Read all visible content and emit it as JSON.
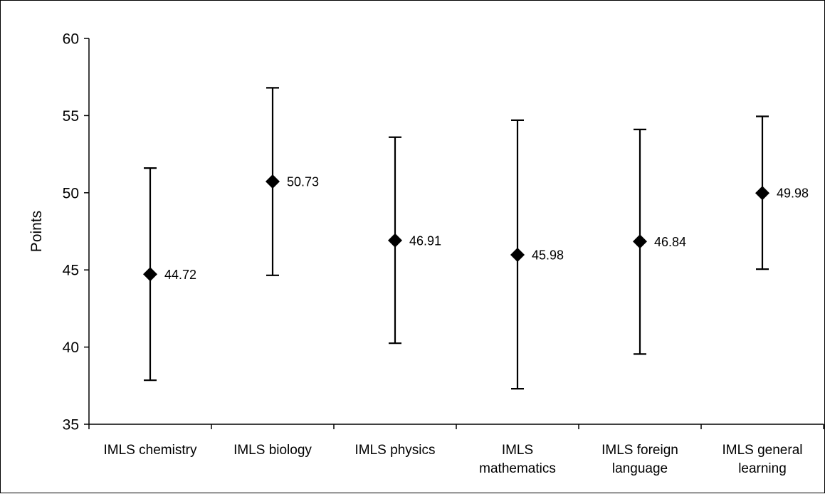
{
  "chart_data": {
    "type": "scatter",
    "title": "",
    "xlabel": "",
    "ylabel": "Points",
    "ylim": [
      35,
      60
    ],
    "yticks": [
      35,
      40,
      45,
      50,
      55,
      60
    ],
    "grid": false,
    "legend": "none",
    "marker": "diamond",
    "colors": {
      "marker": "#000000",
      "error_bar": "#000000",
      "axis": "#000000"
    },
    "categories": [
      [
        "IMLS chemistry"
      ],
      [
        "IMLS biology"
      ],
      [
        "IMLS physics"
      ],
      [
        "IMLS",
        "mathematics"
      ],
      [
        "IMLS foreign",
        "language"
      ],
      [
        "IMLS general",
        "learning"
      ]
    ],
    "values": [
      44.72,
      50.73,
      46.91,
      45.98,
      46.84,
      49.98
    ],
    "value_labels": [
      "44.72",
      "50.73",
      "46.91",
      "45.98",
      "46.84",
      "49.98"
    ],
    "error_low": [
      37.85,
      44.65,
      40.25,
      37.3,
      39.55,
      45.05
    ],
    "error_high": [
      51.6,
      56.8,
      53.6,
      54.7,
      54.1,
      54.95
    ]
  }
}
